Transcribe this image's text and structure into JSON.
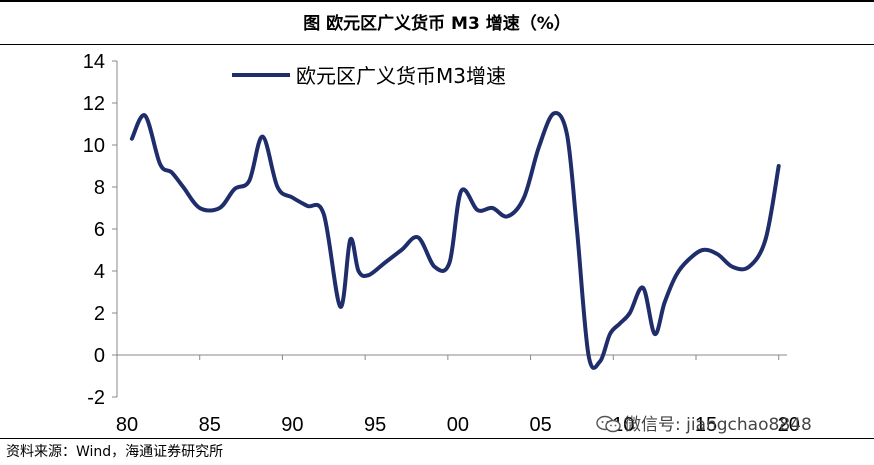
{
  "header": {
    "title": "图  欧元区广义货币 M3 增速（%）"
  },
  "source": "资料来源：Wind，海通证券研究所",
  "watermark": {
    "text": "微信号: jiangchao8848",
    "icon": "wechat-icon"
  },
  "chart_data": {
    "type": "line",
    "title": "图  欧元区广义货币 M3 增速（%）",
    "xlabel": "",
    "ylabel": "",
    "xlim": [
      1980,
      2020.5
    ],
    "ylim": [
      -2,
      14
    ],
    "yticks": [
      -2,
      0,
      2,
      4,
      6,
      8,
      10,
      12,
      14
    ],
    "xticks": [
      1980,
      1985,
      1990,
      1995,
      2000,
      2005,
      2010,
      2015,
      2020
    ],
    "xtick_labels": [
      "80",
      "85",
      "90",
      "95",
      "00",
      "05",
      "10",
      "15",
      "20"
    ],
    "legend": {
      "position": "top-left",
      "entries": [
        "欧元区广义货币M3增速"
      ]
    },
    "grid": false,
    "color": "#1f2d6b",
    "series": [
      {
        "name": "欧元区广义货币M3增速",
        "x": [
          1980.9,
          1981.7,
          1982.6,
          1983.3,
          1984.0,
          1985.0,
          1986.2,
          1987.1,
          1988.0,
          1988.8,
          1989.7,
          1990.6,
          1991.5,
          1992.5,
          1993.5,
          1994.1,
          1994.6,
          1995.2,
          1996.2,
          1997.2,
          1998.2,
          1999.2,
          2000.1,
          2000.8,
          2001.8,
          2002.7,
          2003.6,
          2004.6,
          2005.5,
          2006.4,
          2007.2,
          2007.8,
          2008.5,
          2009.2,
          2009.8,
          2010.4,
          2011.0,
          2011.8,
          2012.5,
          2013.1,
          2013.8,
          2014.5,
          2015.4,
          2016.3,
          2017.2,
          2018.2,
          2019.2,
          2020.0
        ],
        "y": [
          10.3,
          11.4,
          9.1,
          8.7,
          8.0,
          7.0,
          7.0,
          7.9,
          8.3,
          10.4,
          8.0,
          7.5,
          7.1,
          6.7,
          2.3,
          5.5,
          4.0,
          3.8,
          4.4,
          5.0,
          5.6,
          4.2,
          4.4,
          7.8,
          6.9,
          7.0,
          6.6,
          7.5,
          9.9,
          11.5,
          10.5,
          6.0,
          0.0,
          -0.3,
          1.0,
          1.5,
          2.0,
          3.2,
          1.0,
          2.5,
          3.8,
          4.5,
          5.0,
          4.8,
          4.2,
          4.2,
          5.5,
          9.0
        ]
      }
    ]
  }
}
